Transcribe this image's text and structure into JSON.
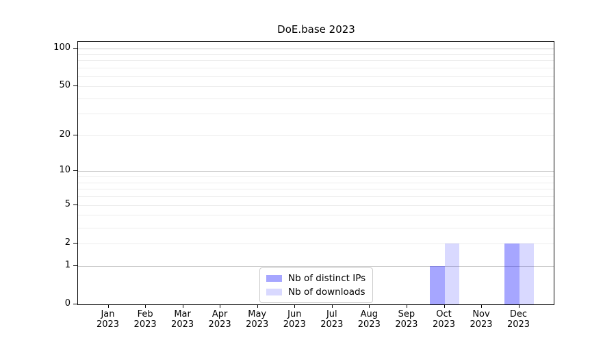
{
  "title": "DoE.base 2023",
  "chart_data": {
    "type": "bar",
    "title": "DoE.base 2023",
    "categories": [
      "Jan",
      "Feb",
      "Mar",
      "Apr",
      "May",
      "Jun",
      "Jul",
      "Aug",
      "Sep",
      "Oct",
      "Nov",
      "Dec"
    ],
    "category_year": "2023",
    "series": [
      {
        "name": "Nb of distinct IPs",
        "color": "rgba(0,0,255,0.35)",
        "values": [
          0,
          0,
          0,
          0,
          0,
          0,
          0,
          0,
          0,
          1,
          0,
          2
        ]
      },
      {
        "name": "Nb of downloads",
        "color": "rgba(0,0,255,0.15)",
        "values": [
          0,
          0,
          0,
          0,
          0,
          0,
          0,
          0,
          0,
          2,
          0,
          2
        ]
      }
    ],
    "xlabel": "",
    "ylabel": "",
    "y_scale": "log10(1+y)",
    "y_tick_labels": [
      0,
      1,
      2,
      5,
      10,
      20,
      50,
      100
    ],
    "y_decade_gridlines": [
      1,
      10,
      100
    ],
    "y_minor_gridlines": [
      2,
      3,
      4,
      5,
      6,
      7,
      8,
      9,
      20,
      30,
      40,
      50,
      60,
      70,
      80,
      90
    ],
    "ylim": [
      0,
      113
    ],
    "grid": "horizontal",
    "legend": {
      "position": "lower-center-inside",
      "entries": [
        "Nb of distinct IPs",
        "Nb of downloads"
      ]
    }
  },
  "colors": {
    "background": "#ffffff",
    "axis": "#000000",
    "grid_decade": "#c9c9c9",
    "grid_minor": "#ededed",
    "bar_distinct_ips": "rgba(0,0,255,0.35)",
    "bar_downloads": "rgba(0,0,255,0.15)"
  }
}
